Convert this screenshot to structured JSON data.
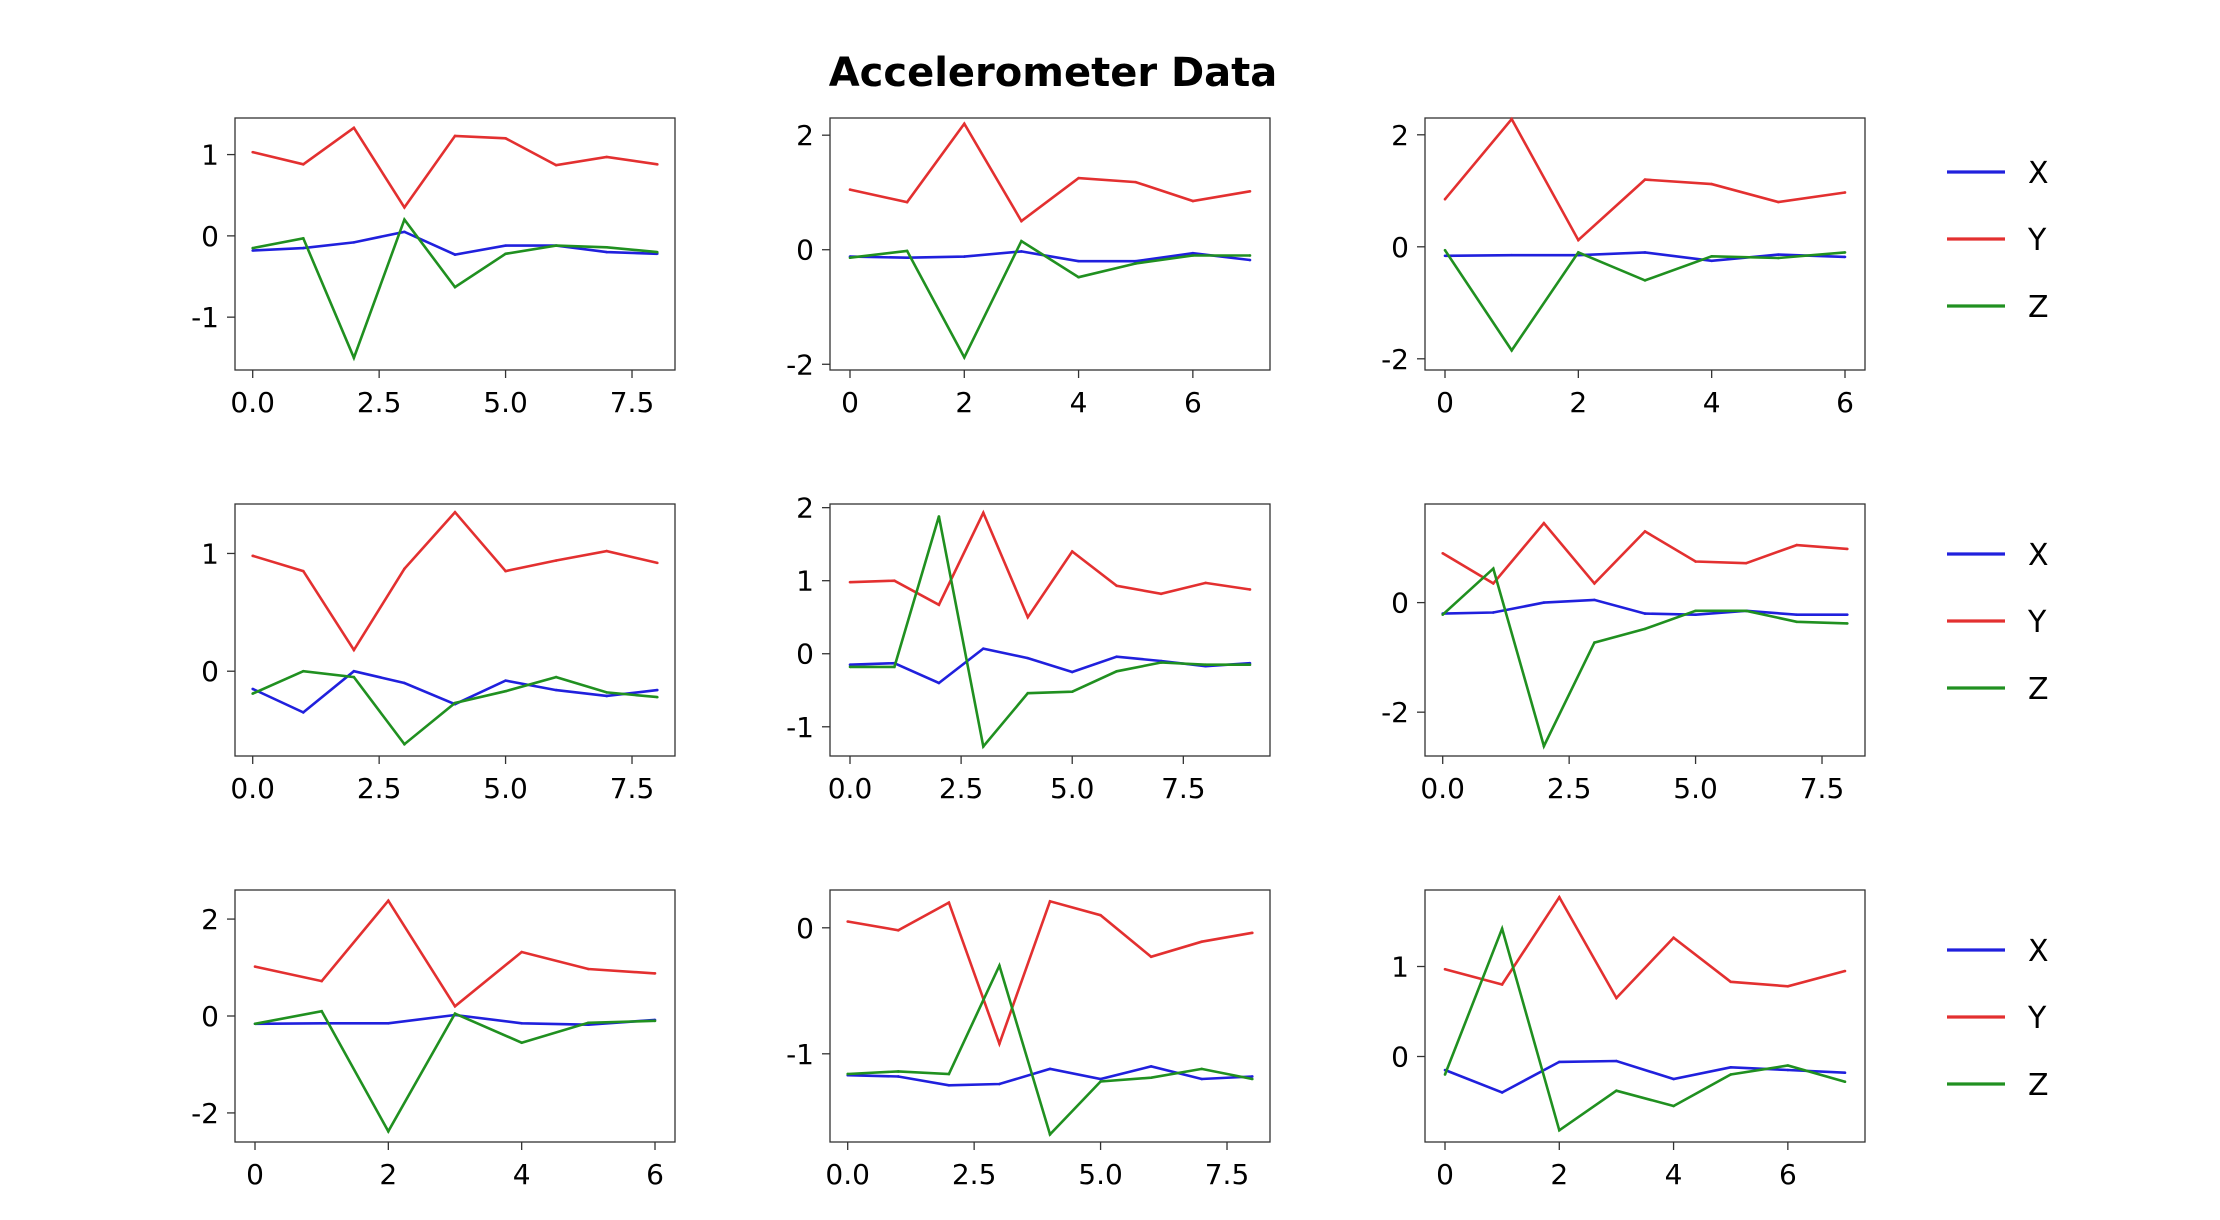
{
  "title": "Accelerometer Data",
  "colors": {
    "X": "#2020dd",
    "Y": "#e33030",
    "Z": "#209020"
  },
  "legends": [
    {
      "entries": [
        "X",
        "Y",
        "Z"
      ]
    },
    {
      "entries": [
        "X",
        "Y",
        "Z"
      ]
    },
    {
      "entries": [
        "X",
        "Y",
        "Z"
      ]
    }
  ],
  "chart_data": [
    {
      "type": "line",
      "title": "",
      "xlabel": "",
      "ylabel": "",
      "xlim": [
        -0.35,
        8.35
      ],
      "ylim": [
        -1.65,
        1.45
      ],
      "xticks": [
        0,
        2.5,
        5,
        7.5
      ],
      "xtick_labels": [
        "0.0",
        "2.5",
        "5.0",
        "7.5"
      ],
      "yticks": [
        -1,
        0,
        1
      ],
      "ytick_labels": [
        "-1",
        "0",
        "1"
      ],
      "x": [
        0,
        1,
        2,
        3,
        4,
        5,
        6,
        7,
        8
      ],
      "series": [
        {
          "name": "X",
          "values": [
            -0.18,
            -0.15,
            -0.08,
            0.05,
            -0.23,
            -0.12,
            -0.12,
            -0.2,
            -0.22
          ]
        },
        {
          "name": "Y",
          "values": [
            1.03,
            0.88,
            1.33,
            0.35,
            1.23,
            1.2,
            0.87,
            0.97,
            0.88
          ]
        },
        {
          "name": "Z",
          "values": [
            -0.15,
            -0.03,
            -1.5,
            0.2,
            -0.63,
            -0.22,
            -0.12,
            -0.14,
            -0.2
          ]
        }
      ]
    },
    {
      "type": "line",
      "title": "",
      "xlabel": "",
      "ylabel": "",
      "xlim": [
        -0.35,
        7.35
      ],
      "ylim": [
        -2.1,
        2.3
      ],
      "xticks": [
        0,
        2,
        4,
        6
      ],
      "xtick_labels": [
        "0",
        "2",
        "4",
        "6"
      ],
      "yticks": [
        -2,
        0,
        2
      ],
      "ytick_labels": [
        "-2",
        "0",
        "2"
      ],
      "x": [
        0,
        1,
        2,
        3,
        4,
        5,
        6,
        7
      ],
      "series": [
        {
          "name": "X",
          "values": [
            -0.12,
            -0.14,
            -0.12,
            -0.03,
            -0.2,
            -0.2,
            -0.06,
            -0.18
          ]
        },
        {
          "name": "Y",
          "values": [
            1.05,
            0.83,
            2.2,
            0.5,
            1.25,
            1.18,
            0.85,
            1.02
          ]
        },
        {
          "name": "Z",
          "values": [
            -0.14,
            -0.02,
            -1.88,
            0.15,
            -0.48,
            -0.24,
            -0.1,
            -0.1
          ]
        }
      ]
    },
    {
      "type": "line",
      "title": "",
      "xlabel": "",
      "ylabel": "",
      "xlim": [
        -0.3,
        6.3
      ],
      "ylim": [
        -2.2,
        2.3
      ],
      "xticks": [
        0,
        2,
        4,
        6
      ],
      "xtick_labels": [
        "0",
        "2",
        "4",
        "6"
      ],
      "yticks": [
        -2,
        0,
        2
      ],
      "ytick_labels": [
        "-2",
        "0",
        "2"
      ],
      "x": [
        0,
        1,
        2,
        3,
        4,
        5,
        6
      ],
      "series": [
        {
          "name": "X",
          "values": [
            -0.16,
            -0.15,
            -0.15,
            -0.1,
            -0.25,
            -0.14,
            -0.18
          ]
        },
        {
          "name": "Y",
          "values": [
            0.85,
            2.28,
            0.12,
            1.2,
            1.12,
            0.8,
            0.97
          ]
        },
        {
          "name": "Z",
          "values": [
            -0.06,
            -1.85,
            -0.1,
            -0.6,
            -0.17,
            -0.2,
            -0.1
          ]
        }
      ]
    },
    {
      "type": "line",
      "title": "",
      "xlabel": "",
      "ylabel": "",
      "xlim": [
        -0.35,
        8.35
      ],
      "ylim": [
        -0.72,
        1.42
      ],
      "xticks": [
        0,
        2.5,
        5,
        7.5
      ],
      "xtick_labels": [
        "0.0",
        "2.5",
        "5.0",
        "7.5"
      ],
      "yticks": [
        0,
        1
      ],
      "ytick_labels": [
        "0",
        "1"
      ],
      "x": [
        0,
        1,
        2,
        3,
        4,
        5,
        6,
        7,
        8
      ],
      "series": [
        {
          "name": "X",
          "values": [
            -0.15,
            -0.35,
            0.0,
            -0.1,
            -0.28,
            -0.08,
            -0.16,
            -0.21,
            -0.16
          ]
        },
        {
          "name": "Y",
          "values": [
            0.98,
            0.85,
            0.18,
            0.87,
            1.35,
            0.85,
            0.94,
            1.02,
            0.92
          ]
        },
        {
          "name": "Z",
          "values": [
            -0.19,
            0.0,
            -0.05,
            -0.62,
            -0.27,
            -0.17,
            -0.05,
            -0.18,
            -0.22
          ]
        }
      ]
    },
    {
      "type": "line",
      "title": "",
      "xlabel": "",
      "ylabel": "",
      "xlim": [
        -0.45,
        9.45
      ],
      "ylim": [
        -1.4,
        2.05
      ],
      "xticks": [
        0,
        2.5,
        5,
        7.5
      ],
      "xtick_labels": [
        "0.0",
        "2.5",
        "5.0",
        "7.5"
      ],
      "yticks": [
        -1,
        0,
        1,
        2
      ],
      "ytick_labels": [
        "-1",
        "0",
        "1",
        "2"
      ],
      "x": [
        0,
        1,
        2,
        3,
        4,
        5,
        6,
        7,
        8,
        9
      ],
      "series": [
        {
          "name": "X",
          "values": [
            -0.15,
            -0.13,
            -0.4,
            0.07,
            -0.06,
            -0.25,
            -0.04,
            -0.1,
            -0.17,
            -0.13
          ]
        },
        {
          "name": "Y",
          "values": [
            0.98,
            1.0,
            0.67,
            1.93,
            0.5,
            1.4,
            0.93,
            0.82,
            0.97,
            0.88
          ]
        },
        {
          "name": "Z",
          "values": [
            -0.18,
            -0.18,
            1.88,
            -1.27,
            -0.54,
            -0.52,
            -0.24,
            -0.12,
            -0.15,
            -0.15
          ]
        }
      ]
    },
    {
      "type": "line",
      "title": "",
      "xlabel": "",
      "ylabel": "",
      "xlim": [
        -0.35,
        8.35
      ],
      "ylim": [
        -2.8,
        1.8
      ],
      "xticks": [
        0,
        2.5,
        5,
        7.5
      ],
      "xtick_labels": [
        "0.0",
        "2.5",
        "5.0",
        "7.5"
      ],
      "yticks": [
        -2,
        0
      ],
      "ytick_labels": [
        "-2",
        "0"
      ],
      "x": [
        0,
        1,
        2,
        3,
        4,
        5,
        6,
        7,
        8
      ],
      "series": [
        {
          "name": "X",
          "values": [
            -0.2,
            -0.18,
            0.0,
            0.05,
            -0.2,
            -0.22,
            -0.15,
            -0.22,
            -0.22
          ]
        },
        {
          "name": "Y",
          "values": [
            0.9,
            0.35,
            1.45,
            0.35,
            1.3,
            0.75,
            0.72,
            1.05,
            0.98
          ]
        },
        {
          "name": "Z",
          "values": [
            -0.22,
            0.62,
            -2.62,
            -0.73,
            -0.48,
            -0.15,
            -0.15,
            -0.35,
            -0.38
          ]
        }
      ]
    },
    {
      "type": "line",
      "title": "",
      "xlabel": "",
      "ylabel": "",
      "xlim": [
        -0.3,
        6.3
      ],
      "ylim": [
        -2.6,
        2.6
      ],
      "xticks": [
        0,
        2,
        4,
        6
      ],
      "xtick_labels": [
        "0",
        "2",
        "4",
        "6"
      ],
      "yticks": [
        -2,
        0,
        2
      ],
      "ytick_labels": [
        "-2",
        "0",
        "2"
      ],
      "x": [
        0,
        1,
        2,
        3,
        4,
        5,
        6
      ],
      "series": [
        {
          "name": "X",
          "values": [
            -0.16,
            -0.15,
            -0.15,
            0.02,
            -0.15,
            -0.18,
            -0.08
          ]
        },
        {
          "name": "Y",
          "values": [
            1.02,
            0.72,
            2.38,
            0.2,
            1.32,
            0.97,
            0.88
          ]
        },
        {
          "name": "Z",
          "values": [
            -0.16,
            0.1,
            -2.38,
            0.05,
            -0.55,
            -0.14,
            -0.1
          ]
        }
      ]
    },
    {
      "type": "line",
      "title": "",
      "xlabel": "",
      "ylabel": "",
      "xlim": [
        -0.35,
        8.35
      ],
      "ylim": [
        -1.7,
        0.3
      ],
      "xticks": [
        0,
        2.5,
        5,
        7.5
      ],
      "xtick_labels": [
        "0.0",
        "2.5",
        "5.0",
        "7.5"
      ],
      "yticks": [
        -1,
        0
      ],
      "ytick_labels": [
        "-1",
        "0"
      ],
      "x": [
        0,
        1,
        2,
        3,
        4,
        5,
        6,
        7,
        8
      ],
      "series": [
        {
          "name": "X",
          "values": [
            -1.17,
            -1.18,
            -1.25,
            -1.24,
            -1.12,
            -1.2,
            -1.1,
            -1.2,
            -1.18
          ]
        },
        {
          "name": "Y",
          "values": [
            0.05,
            -0.02,
            0.2,
            -0.92,
            0.21,
            0.1,
            -0.23,
            -0.11,
            -0.04
          ]
        },
        {
          "name": "Z",
          "values": [
            -1.16,
            -1.14,
            -1.16,
            -0.3,
            -1.64,
            -1.22,
            -1.19,
            -1.12,
            -1.2
          ]
        }
      ]
    },
    {
      "type": "line",
      "title": "",
      "xlabel": "",
      "ylabel": "",
      "xlim": [
        -0.35,
        7.35
      ],
      "ylim": [
        -0.95,
        1.85
      ],
      "xticks": [
        0,
        2,
        4,
        6
      ],
      "xtick_labels": [
        "0",
        "2",
        "4",
        "6"
      ],
      "yticks": [
        0,
        1
      ],
      "ytick_labels": [
        "0",
        "1"
      ],
      "x": [
        0,
        1,
        2,
        3,
        4,
        5,
        6,
        7
      ],
      "series": [
        {
          "name": "X",
          "values": [
            -0.15,
            -0.4,
            -0.06,
            -0.05,
            -0.25,
            -0.12,
            -0.15,
            -0.18
          ]
        },
        {
          "name": "Y",
          "values": [
            0.97,
            0.8,
            1.77,
            0.65,
            1.32,
            0.83,
            0.78,
            0.95
          ]
        },
        {
          "name": "Z",
          "values": [
            -0.2,
            1.42,
            -0.82,
            -0.38,
            -0.55,
            -0.2,
            -0.1,
            -0.28
          ]
        }
      ]
    }
  ]
}
